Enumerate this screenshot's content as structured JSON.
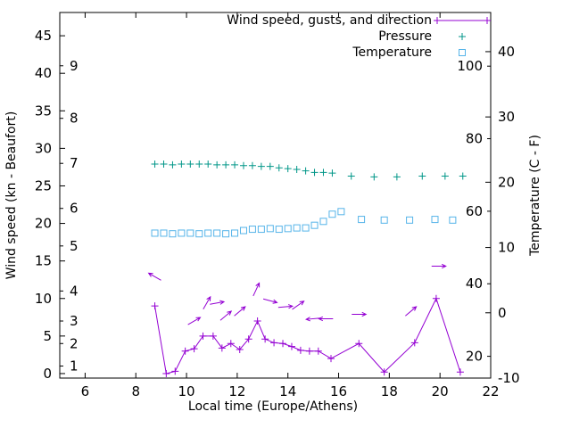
{
  "window": {
    "background": "#ffffff",
    "border_color": "#000000"
  },
  "chart_data": {
    "type": "line",
    "title": "",
    "x_axis": {
      "label": "Local time (Europe/Athens)",
      "range": [
        5,
        22
      ],
      "ticks": [
        6,
        8,
        10,
        12,
        14,
        16,
        18,
        20,
        22
      ]
    },
    "left_axis": {
      "label": "Wind speed (kn - Beaufort)",
      "range": [
        -0.6,
        48.1
      ],
      "ticks": [
        0,
        5,
        10,
        15,
        20,
        25,
        30,
        35,
        40,
        45
      ],
      "beaufort_scale": [
        {
          "label": "1",
          "kn": 1
        },
        {
          "label": "2",
          "kn": 4
        },
        {
          "label": "3",
          "kn": 7
        },
        {
          "label": "4",
          "kn": 11
        },
        {
          "label": "5",
          "kn": 17
        },
        {
          "label": "6",
          "kn": 22
        },
        {
          "label": "7",
          "kn": 28
        },
        {
          "label": "8",
          "kn": 34
        },
        {
          "label": "9",
          "kn": 41
        }
      ]
    },
    "right_axis": {
      "label": "Temperature (C - F)",
      "range_c": [
        -10,
        46
      ],
      "ticks_c": [
        -10,
        0,
        10,
        20,
        30,
        40
      ],
      "ticks_f": [
        20,
        40,
        60,
        80,
        100
      ]
    },
    "legend": [
      {
        "label": "Wind speed, gusts, and direction",
        "marker": "line-plus",
        "color": "#9400d3"
      },
      {
        "label": "Pressure",
        "marker": "plus",
        "color": "#009688"
      },
      {
        "label": "Temperature",
        "marker": "open-square",
        "color": "#56b4e9"
      }
    ],
    "series": {
      "wind_speed_kn": {
        "color": "#9400d3",
        "axis": "left",
        "points": [
          [
            8.75,
            9.0
          ],
          [
            9.2,
            0.0
          ],
          [
            9.55,
            0.3
          ],
          [
            9.95,
            3.0
          ],
          [
            10.3,
            3.3
          ],
          [
            10.65,
            5.0
          ],
          [
            11.05,
            5.0
          ],
          [
            11.4,
            3.4
          ],
          [
            11.75,
            4.0
          ],
          [
            12.1,
            3.2
          ],
          [
            12.45,
            4.6
          ],
          [
            12.8,
            7.0
          ],
          [
            13.1,
            4.6
          ],
          [
            13.45,
            4.1
          ],
          [
            13.8,
            4.0
          ],
          [
            14.15,
            3.6
          ],
          [
            14.5,
            3.1
          ],
          [
            14.85,
            3.0
          ],
          [
            15.2,
            3.0
          ],
          [
            15.7,
            2.0
          ],
          [
            16.8,
            4.0
          ],
          [
            17.8,
            0.2
          ],
          [
            19.0,
            4.1
          ],
          [
            19.85,
            10.0
          ],
          [
            20.8,
            0.2
          ]
        ]
      },
      "wind_direction": {
        "color": "#9400d3",
        "arrows": [
          [
            8.75,
            12.9,
            150
          ],
          [
            10.3,
            7.0,
            30
          ],
          [
            10.8,
            9.4,
            60
          ],
          [
            11.2,
            9.4,
            10
          ],
          [
            11.55,
            7.7,
            40
          ],
          [
            12.1,
            8.3,
            40
          ],
          [
            12.75,
            11.2,
            65
          ],
          [
            13.3,
            9.7,
            -15
          ],
          [
            13.9,
            8.9,
            5
          ],
          [
            14.4,
            9.1,
            35
          ],
          [
            15.0,
            7.3,
            185
          ],
          [
            15.5,
            7.3,
            180
          ],
          [
            16.8,
            7.9,
            0
          ],
          [
            18.85,
            8.3,
            40
          ],
          [
            19.95,
            14.3,
            0
          ]
        ]
      },
      "pressure": {
        "color": "#009688",
        "axis": "left",
        "points": [
          [
            8.75,
            27.9
          ],
          [
            9.1,
            27.9
          ],
          [
            9.45,
            27.8
          ],
          [
            9.8,
            27.9
          ],
          [
            10.15,
            27.9
          ],
          [
            10.5,
            27.9
          ],
          [
            10.85,
            27.9
          ],
          [
            11.2,
            27.8
          ],
          [
            11.55,
            27.8
          ],
          [
            11.9,
            27.8
          ],
          [
            12.25,
            27.7
          ],
          [
            12.6,
            27.7
          ],
          [
            12.95,
            27.6
          ],
          [
            13.3,
            27.6
          ],
          [
            13.65,
            27.4
          ],
          [
            14.0,
            27.3
          ],
          [
            14.35,
            27.2
          ],
          [
            14.7,
            27.0
          ],
          [
            15.05,
            26.8
          ],
          [
            15.4,
            26.8
          ],
          [
            15.75,
            26.7
          ],
          [
            16.5,
            26.3
          ],
          [
            17.4,
            26.2
          ],
          [
            18.3,
            26.2
          ],
          [
            19.3,
            26.3
          ],
          [
            20.2,
            26.3
          ],
          [
            20.9,
            26.3
          ]
        ]
      },
      "temperature_c": {
        "color": "#56b4e9",
        "axis": "right",
        "points": [
          [
            8.75,
            12.2
          ],
          [
            9.1,
            12.2
          ],
          [
            9.45,
            12.1
          ],
          [
            9.8,
            12.2
          ],
          [
            10.15,
            12.2
          ],
          [
            10.5,
            12.1
          ],
          [
            10.85,
            12.2
          ],
          [
            11.2,
            12.2
          ],
          [
            11.55,
            12.1
          ],
          [
            11.9,
            12.2
          ],
          [
            12.25,
            12.6
          ],
          [
            12.6,
            12.8
          ],
          [
            12.95,
            12.8
          ],
          [
            13.3,
            12.9
          ],
          [
            13.65,
            12.8
          ],
          [
            14.0,
            12.9
          ],
          [
            14.35,
            13.0
          ],
          [
            14.7,
            13.0
          ],
          [
            15.05,
            13.4
          ],
          [
            15.4,
            14.0
          ],
          [
            15.75,
            15.1
          ],
          [
            16.1,
            15.5
          ],
          [
            16.9,
            14.3
          ],
          [
            17.8,
            14.2
          ],
          [
            18.8,
            14.2
          ],
          [
            19.8,
            14.3
          ],
          [
            20.5,
            14.2
          ]
        ]
      }
    }
  }
}
